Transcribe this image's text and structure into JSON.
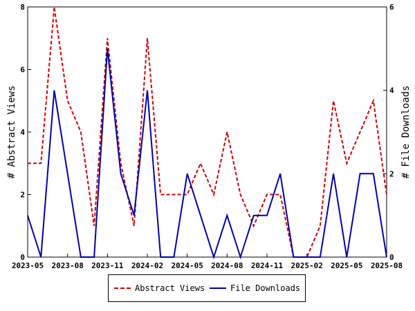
{
  "chart_data": {
    "type": "line",
    "x": [
      "2023-05",
      "2023-06",
      "2023-07",
      "2023-08",
      "2023-09",
      "2023-10",
      "2023-11",
      "2023-12",
      "2024-01",
      "2024-02",
      "2024-03",
      "2024-04",
      "2024-05",
      "2024-06",
      "2024-07",
      "2024-08",
      "2024-09",
      "2024-10",
      "2024-11",
      "2024-12",
      "2025-01",
      "2025-02",
      "2025-03",
      "2025-04",
      "2025-05",
      "2025-06",
      "2025-07",
      "2025-08"
    ],
    "x_ticks": [
      "2023-05",
      "2023-08",
      "2023-11",
      "2024-02",
      "2024-05",
      "2024-08",
      "2024-11",
      "2025-02",
      "2025-05",
      "2025-08"
    ],
    "series": [
      {
        "name": "Abstract Views",
        "axis": "left",
        "color": "#cc0000",
        "style": "dashed",
        "values": [
          3,
          3,
          8,
          5,
          4,
          1,
          7,
          3,
          1,
          7,
          2,
          2,
          2,
          3,
          2,
          4,
          2,
          1,
          2,
          2,
          0,
          0,
          1,
          5,
          3,
          4,
          5,
          2
        ]
      },
      {
        "name": "File Downloads",
        "axis": "right",
        "color": "#0000aa",
        "style": "solid",
        "values": [
          1,
          0,
          4,
          2,
          0,
          0,
          5,
          2,
          1,
          4,
          0,
          0,
          2,
          1,
          0,
          1,
          0,
          1,
          1,
          2,
          0,
          0,
          0,
          2,
          0,
          2,
          2,
          0
        ]
      }
    ],
    "ylabel_left": "# Abstract Views",
    "ylabel_right": "# File Downloads",
    "ylim_left": [
      0,
      8
    ],
    "yticks_left": [
      0,
      2,
      4,
      6,
      8
    ],
    "ylim_right": [
      0,
      6
    ],
    "yticks_right": [
      0,
      2,
      4,
      6
    ],
    "grid": false,
    "legend_placement": "bottom-center"
  }
}
